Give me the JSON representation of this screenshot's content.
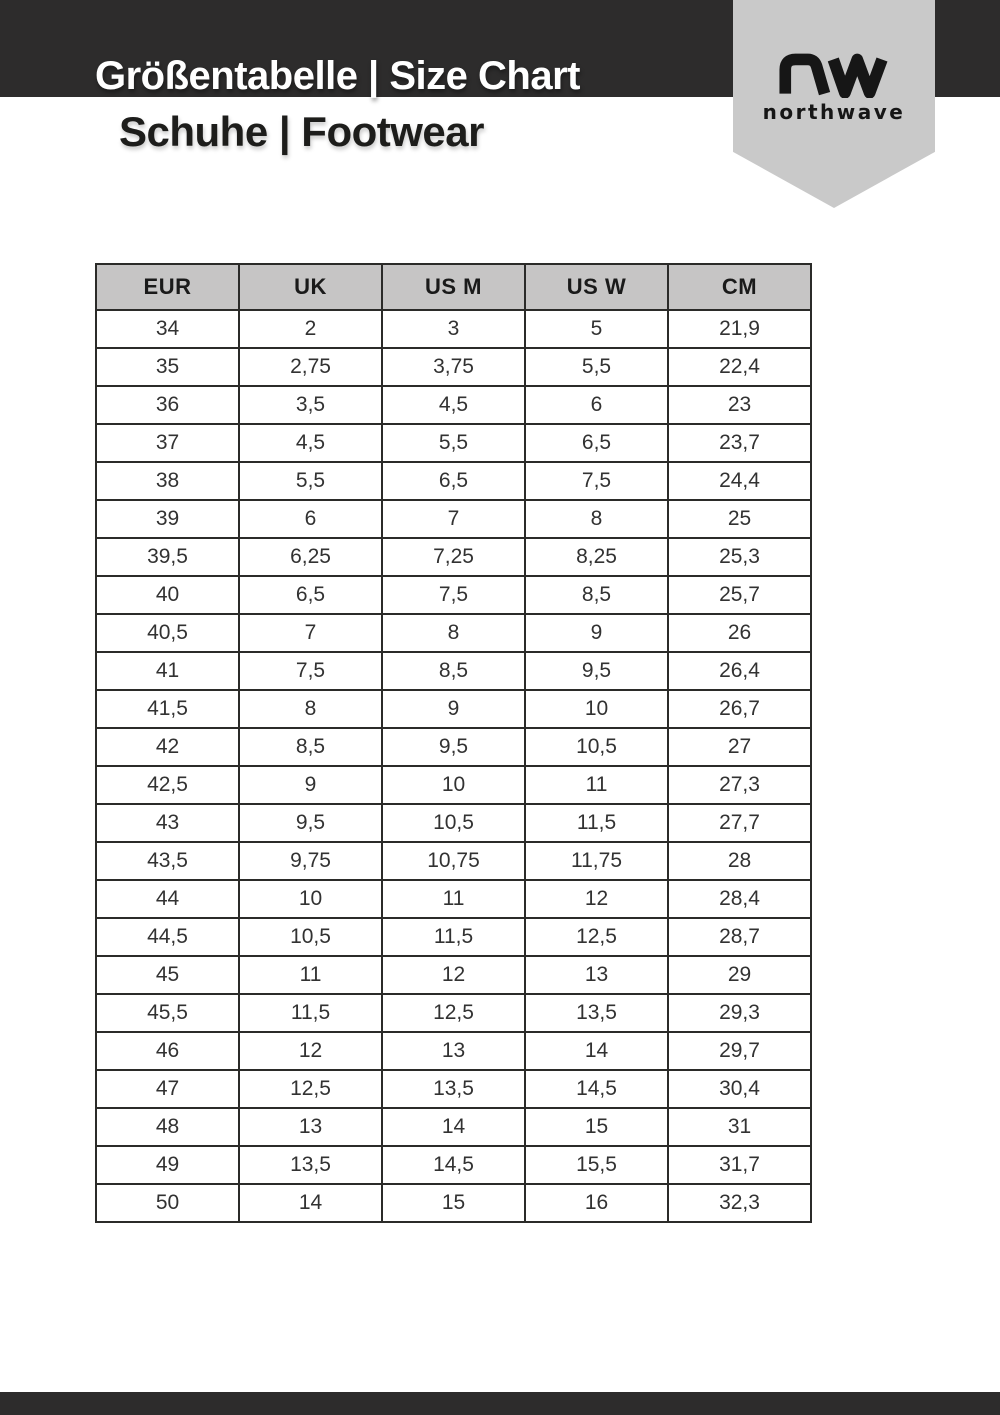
{
  "header": {
    "title": "Größentabelle | Size Chart",
    "subtitle": "Schuhe | Footwear"
  },
  "brand": {
    "name": "northwave",
    "monogram": "nw"
  },
  "colors": {
    "band_dark": "#2d2c2c",
    "ribbon_gray": "#c9c9c9",
    "table_header_gray": "#c6c5c5",
    "border_dark": "#2b2b29",
    "title_light": "#ffffff",
    "text_dark": "#1d1d1b"
  },
  "table": {
    "columns": [
      "EUR",
      "UK",
      "US M",
      "US W",
      "CM"
    ],
    "rows": [
      [
        "34",
        "2",
        "3",
        "5",
        "21,9"
      ],
      [
        "35",
        "2,75",
        "3,75",
        "5,5",
        "22,4"
      ],
      [
        "36",
        "3,5",
        "4,5",
        "6",
        "23"
      ],
      [
        "37",
        "4,5",
        "5,5",
        "6,5",
        "23,7"
      ],
      [
        "38",
        "5,5",
        "6,5",
        "7,5",
        "24,4"
      ],
      [
        "39",
        "6",
        "7",
        "8",
        "25"
      ],
      [
        "39,5",
        "6,25",
        "7,25",
        "8,25",
        "25,3"
      ],
      [
        "40",
        "6,5",
        "7,5",
        "8,5",
        "25,7"
      ],
      [
        "40,5",
        "7",
        "8",
        "9",
        "26"
      ],
      [
        "41",
        "7,5",
        "8,5",
        "9,5",
        "26,4"
      ],
      [
        "41,5",
        "8",
        "9",
        "10",
        "26,7"
      ],
      [
        "42",
        "8,5",
        "9,5",
        "10,5",
        "27"
      ],
      [
        "42,5",
        "9",
        "10",
        "11",
        "27,3"
      ],
      [
        "43",
        "9,5",
        "10,5",
        "11,5",
        "27,7"
      ],
      [
        "43,5",
        "9,75",
        "10,75",
        "11,75",
        "28"
      ],
      [
        "44",
        "10",
        "11",
        "12",
        "28,4"
      ],
      [
        "44,5",
        "10,5",
        "11,5",
        "12,5",
        "28,7"
      ],
      [
        "45",
        "11",
        "12",
        "13",
        "29"
      ],
      [
        "45,5",
        "11,5",
        "12,5",
        "13,5",
        "29,3"
      ],
      [
        "46",
        "12",
        "13",
        "14",
        "29,7"
      ],
      [
        "47",
        "12,5",
        "13,5",
        "14,5",
        "30,4"
      ],
      [
        "48",
        "13",
        "14",
        "15",
        "31"
      ],
      [
        "49",
        "13,5",
        "14,5",
        "15,5",
        "31,7"
      ],
      [
        "50",
        "14",
        "15",
        "16",
        "32,3"
      ]
    ]
  }
}
